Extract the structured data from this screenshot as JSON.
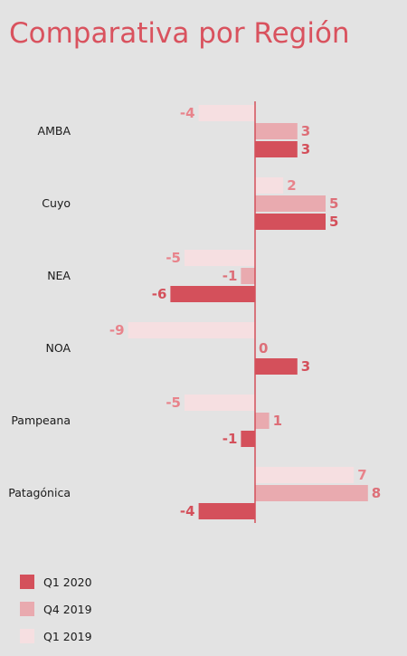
{
  "chart_data": {
    "type": "bar",
    "orientation": "horizontal",
    "title": "Comparativa por Región",
    "categories": [
      "AMBA",
      "Cuyo",
      "NEA",
      "NOA",
      "Pampeana",
      "Patagónica"
    ],
    "series": [
      {
        "name": "Q1 2019",
        "color": "#f6dfe1",
        "label_color": "#e8838b",
        "values": [
          -4,
          2,
          -5,
          -9,
          -5,
          7
        ]
      },
      {
        "name": "Q4 2019",
        "color": "#e9aaaf",
        "label_color": "#dd6f78",
        "values": [
          3,
          5,
          -1,
          0,
          1,
          8
        ]
      },
      {
        "name": "Q1 2020",
        "color": "#d4505b",
        "label_color": "#d4505b",
        "values": [
          3,
          5,
          -6,
          3,
          -1,
          -4
        ]
      }
    ],
    "legend_order": [
      "Q1 2020",
      "Q4 2019",
      "Q1 2019"
    ],
    "legend_position": "bottom-left",
    "grid": false,
    "zero_line_color": "#d4505b"
  }
}
